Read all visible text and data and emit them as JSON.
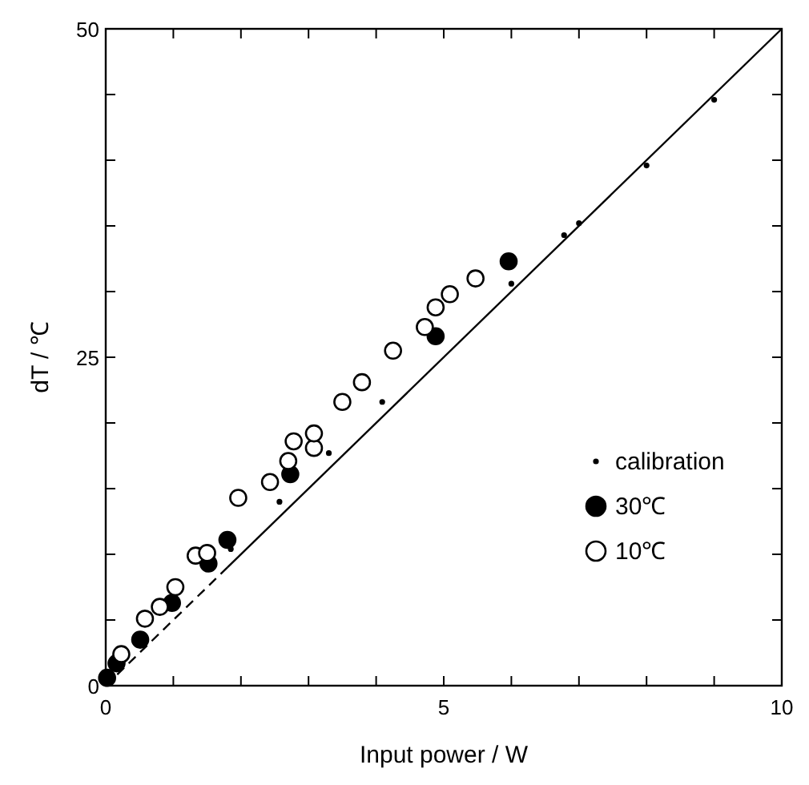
{
  "chart_data": {
    "type": "scatter",
    "xlabel": "Input power / W",
    "ylabel": "dT / ℃",
    "xlim": [
      0,
      10
    ],
    "ylim": [
      0,
      50
    ],
    "xticks": [
      0,
      {
        "value": 1,
        "label": null
      },
      {
        "value": 2,
        "label": null
      },
      {
        "value": 3,
        "label": null
      },
      {
        "value": 4,
        "label": null
      },
      5,
      {
        "value": 6,
        "label": null
      },
      {
        "value": 7,
        "label": null
      },
      {
        "value": 8,
        "label": null
      },
      {
        "value": 9,
        "label": null
      },
      10
    ],
    "yticks": [
      0,
      {
        "value": 5,
        "label": null
      },
      {
        "value": 10,
        "label": null
      },
      {
        "value": 15,
        "label": null
      },
      {
        "value": 20,
        "label": null
      },
      25,
      {
        "value": 30,
        "label": null
      },
      {
        "value": 35,
        "label": null
      },
      {
        "value": 40,
        "label": null
      },
      {
        "value": 45,
        "label": null
      },
      50
    ],
    "grid": false,
    "legend": "right",
    "series": [
      {
        "name": "calibration",
        "marker": "circle",
        "color": "#000000",
        "x": [
          1.85,
          2.57,
          3.3,
          4.09,
          6.0,
          6.78,
          7.0,
          8.0,
          9.0
        ],
        "values": [
          10.4,
          14,
          17.7,
          21.6,
          30.6,
          34.3,
          35.2,
          39.6,
          44.6
        ]
      },
      {
        "name": "30℃",
        "marker": "circle",
        "color": "#000000",
        "x": [
          0.02,
          0.16,
          0.51,
          0.98,
          1.52,
          1.8,
          2.73,
          4.88,
          5.96
        ],
        "values": [
          0.6,
          1.7,
          3.5,
          6.3,
          9.3,
          11.1,
          16.1,
          26.6,
          32.3
        ]
      },
      {
        "name": "10℃",
        "marker": "circle",
        "color": "#ffffff",
        "x": [
          0.23,
          0.58,
          0.8,
          1.03,
          1.33,
          1.5,
          1.96,
          2.43,
          2.7,
          2.78,
          3.08,
          3.08,
          3.5,
          3.79,
          4.25,
          4.72,
          4.88,
          5.09,
          5.47
        ],
        "values": [
          2.4,
          5.1,
          6.0,
          7.5,
          9.9,
          10.1,
          14.3,
          15.5,
          17.1,
          18.6,
          18.1,
          19.2,
          21.6,
          23.1,
          25.5,
          27.3,
          28.8,
          29.8,
          31
        ]
      },
      {
        "type": "line",
        "line_style": "dashed",
        "color": "#000000",
        "x": [
          0,
          1.8
        ],
        "values": [
          0,
          9
        ]
      },
      {
        "type": "line",
        "line_style": "solid",
        "color": "#000000",
        "x": [
          1.8,
          10
        ],
        "values": [
          9,
          50
        ]
      }
    ]
  }
}
